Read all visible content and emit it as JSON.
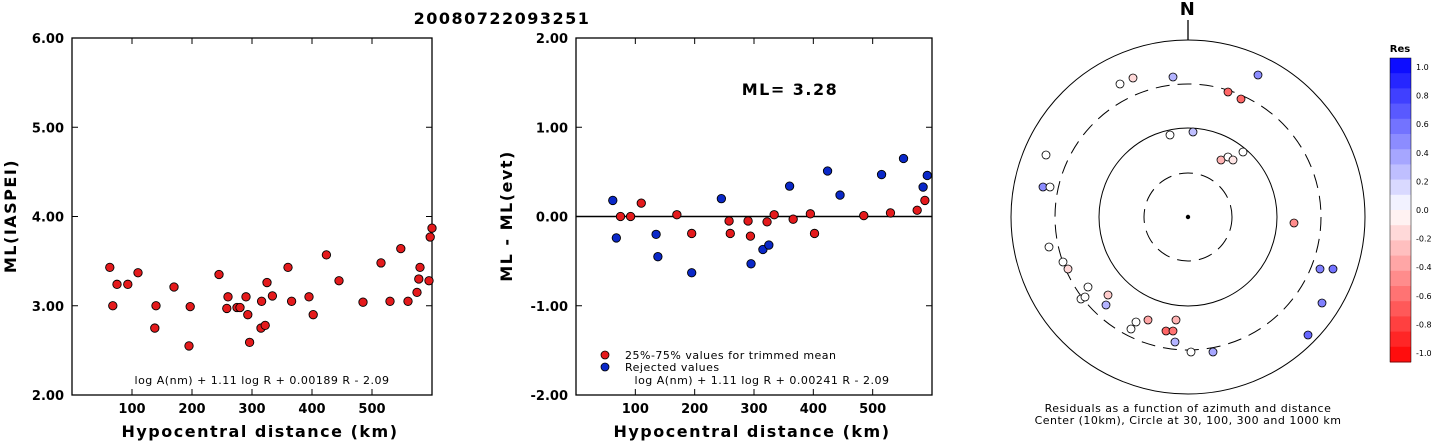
{
  "title": "20080722093251",
  "chart_data": [
    {
      "type": "scatter",
      "ylabel": "ML(IASPEI)",
      "xlabel": "Hypocentral distance (km)",
      "xlim": [
        0,
        600
      ],
      "ylim": [
        2.0,
        6.0
      ],
      "xticks": [
        100,
        200,
        300,
        400,
        500
      ],
      "yticks": [
        "2.00",
        "3.00",
        "4.00",
        "5.00",
        "6.00"
      ],
      "formula": "log A(nm) + 1.11 log R + 0.00189 R - 2.09",
      "points": [
        [
          63,
          3.43
        ],
        [
          68,
          3.0
        ],
        [
          75,
          3.24
        ],
        [
          93,
          3.24
        ],
        [
          110,
          3.37
        ],
        [
          138,
          2.75
        ],
        [
          140,
          3.0
        ],
        [
          170,
          3.21
        ],
        [
          195,
          2.55
        ],
        [
          197,
          2.99
        ],
        [
          245,
          3.35
        ],
        [
          258,
          2.97
        ],
        [
          260,
          3.1
        ],
        [
          275,
          2.98
        ],
        [
          280,
          2.98
        ],
        [
          290,
          3.1
        ],
        [
          293,
          2.9
        ],
        [
          296,
          2.59
        ],
        [
          315,
          2.75
        ],
        [
          316,
          3.05
        ],
        [
          322,
          2.78
        ],
        [
          325,
          3.26
        ],
        [
          334,
          3.11
        ],
        [
          360,
          3.43
        ],
        [
          366,
          3.05
        ],
        [
          395,
          3.1
        ],
        [
          402,
          2.9
        ],
        [
          424,
          3.57
        ],
        [
          445,
          3.28
        ],
        [
          485,
          3.04
        ],
        [
          515,
          3.48
        ],
        [
          530,
          3.05
        ],
        [
          548,
          3.64
        ],
        [
          560,
          3.05
        ],
        [
          575,
          3.15
        ],
        [
          578,
          3.3
        ],
        [
          580,
          3.43
        ],
        [
          595,
          3.28
        ],
        [
          597,
          3.77
        ],
        [
          600,
          3.87
        ]
      ],
      "point_color": "#e41a1c"
    },
    {
      "type": "scatter",
      "ylabel": "ML - ML(evt)",
      "xlabel": "Hypocentral distance (km)",
      "xlim": [
        0,
        600
      ],
      "ylim": [
        -2.0,
        2.0
      ],
      "xticks": [
        100,
        200,
        300,
        400,
        500
      ],
      "yticks": [
        "-2.00",
        "-1.00",
        "0.00",
        "1.00",
        "2.00"
      ],
      "annotation": "ML= 3.28",
      "formula": "log A(nm) + 1.11 log R + 0.00241 R - 2.09",
      "legend": [
        {
          "label": "25%-75% values for trimmed mean",
          "color": "#e41a1c"
        },
        {
          "label": "Rejected values",
          "color": "#0a28c8"
        }
      ],
      "series": [
        {
          "color": "#e41a1c",
          "points": [
            [
              75,
              0.0
            ],
            [
              92,
              0.0
            ],
            [
              110,
              0.15
            ],
            [
              170,
              0.02
            ],
            [
              195,
              -0.19
            ],
            [
              258,
              -0.05
            ],
            [
              260,
              -0.19
            ],
            [
              290,
              -0.05
            ],
            [
              294,
              -0.22
            ],
            [
              322,
              -0.06
            ],
            [
              334,
              0.02
            ],
            [
              366,
              -0.03
            ],
            [
              395,
              0.03
            ],
            [
              402,
              -0.19
            ],
            [
              485,
              0.01
            ],
            [
              530,
              0.04
            ],
            [
              575,
              0.07
            ],
            [
              588,
              0.18
            ]
          ]
        },
        {
          "color": "#0a28c8",
          "points": [
            [
              62,
              0.18
            ],
            [
              68,
              -0.24
            ],
            [
              135,
              -0.2
            ],
            [
              138,
              -0.45
            ],
            [
              195,
              -0.63
            ],
            [
              245,
              0.2
            ],
            [
              295,
              -0.53
            ],
            [
              315,
              -0.37
            ],
            [
              325,
              -0.32
            ],
            [
              360,
              0.34
            ],
            [
              424,
              0.51
            ],
            [
              445,
              0.24
            ],
            [
              515,
              0.47
            ],
            [
              552,
              0.65
            ],
            [
              585,
              0.33
            ],
            [
              592,
              0.46
            ]
          ]
        }
      ]
    },
    {
      "type": "scatter",
      "subtype": "polar",
      "north_label": "N",
      "caption": [
        "Residuals as a function of azimuth and distance",
        "Center (10km), Circle at 30, 100, 300 and 1000 km"
      ],
      "colorbar": {
        "title": "Res",
        "labels": [
          "1.0",
          "0.8",
          "0.6",
          "0.4",
          "0.2",
          "0.0",
          "-0.2",
          "-0.4",
          "-0.6",
          "-0.8",
          "-1.0"
        ]
      },
      "points": [
        [
          -68,
          133,
          0.0
        ],
        [
          -55,
          139,
          -0.15
        ],
        [
          -15,
          140,
          0.3
        ],
        [
          40,
          125,
          -0.6
        ],
        [
          53,
          118,
          -0.6
        ],
        [
          70,
          142,
          0.45
        ],
        [
          -18,
          82,
          0.0
        ],
        [
          5,
          85,
          0.25
        ],
        [
          33,
          57,
          -0.3
        ],
        [
          40,
          60,
          0.0
        ],
        [
          45,
          57,
          -0.1
        ],
        [
          55,
          65,
          0.0
        ],
        [
          -142,
          62,
          0.0
        ],
        [
          -145,
          30,
          0.45
        ],
        [
          -138,
          30,
          0.0
        ],
        [
          -139,
          -30,
          0.0
        ],
        [
          -120,
          -52,
          -0.15
        ],
        [
          -107,
          -82,
          0.0
        ],
        [
          -103,
          -80,
          0.0
        ],
        [
          -80,
          -78,
          -0.2
        ],
        [
          -100,
          -70,
          0.0
        ],
        [
          -82,
          -88,
          0.3
        ],
        [
          -125,
          -45,
          0.0
        ],
        [
          -52,
          -105,
          0.0
        ],
        [
          -40,
          -103,
          -0.35
        ],
        [
          -57,
          -112,
          0.0
        ],
        [
          -12,
          -103,
          -0.3
        ],
        [
          -22,
          -114,
          -0.6
        ],
        [
          -15,
          -114,
          -0.55
        ],
        [
          -13,
          -125,
          0.3
        ],
        [
          3,
          -135,
          0.0
        ],
        [
          25,
          -135,
          0.35
        ],
        [
          106,
          -6,
          -0.45
        ],
        [
          132,
          -52,
          0.5
        ],
        [
          145,
          -52,
          0.55
        ],
        [
          134,
          -86,
          0.5
        ],
        [
          120,
          -118,
          0.6
        ]
      ]
    }
  ]
}
